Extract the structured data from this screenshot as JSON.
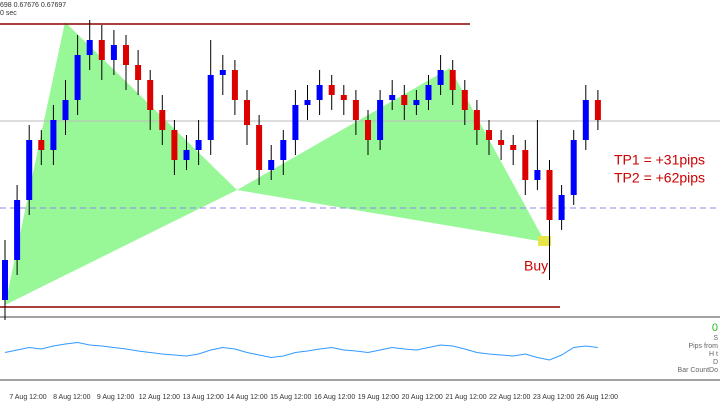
{
  "chart_data": {
    "type": "candlestick",
    "header": [
      "698 0.67676 0.67697",
      "0 sec"
    ],
    "ylim": [
      0.67,
      0.676
    ],
    "bull_color": "#0000ff",
    "bear_color": "#dd0000",
    "open": [
      0.6704,
      0.6712,
      0.6724,
      0.6736,
      0.6734,
      0.674,
      0.6744,
      0.6753,
      0.6756,
      0.6752,
      0.6755,
      0.6751,
      0.6748,
      0.6742,
      0.6738,
      0.6732,
      0.6734,
      0.6736,
      0.6749,
      0.675,
      0.6744,
      0.6739,
      0.673,
      0.6732,
      0.6736,
      0.6743,
      0.6744,
      0.6747,
      0.6745,
      0.6744,
      0.674,
      0.6736,
      0.6744,
      0.6745,
      0.6743,
      0.6744,
      0.6747,
      0.675,
      0.6746,
      0.6742,
      0.6738,
      0.6736,
      0.6735,
      0.6734,
      0.6728,
      0.673,
      0.672,
      0.6725,
      0.6736,
      0.6744
    ],
    "high": [
      0.6716,
      0.6727,
      0.6739,
      0.6738,
      0.6743,
      0.6748,
      0.6757,
      0.676,
      0.6759,
      0.6758,
      0.6757,
      0.6754,
      0.675,
      0.6745,
      0.674,
      0.6737,
      0.674,
      0.6756,
      0.6753,
      0.6752,
      0.6746,
      0.6741,
      0.6735,
      0.6738,
      0.6746,
      0.6747,
      0.675,
      0.6749,
      0.6747,
      0.6746,
      0.6742,
      0.6746,
      0.6748,
      0.6747,
      0.6746,
      0.6749,
      0.6753,
      0.6752,
      0.6748,
      0.6744,
      0.674,
      0.6738,
      0.6737,
      0.6736,
      0.674,
      0.6732,
      0.6727,
      0.6738,
      0.6747,
      0.6746
    ],
    "low": [
      0.67,
      0.6709,
      0.6721,
      0.6731,
      0.6731,
      0.6737,
      0.6741,
      0.675,
      0.6748,
      0.6749,
      0.6746,
      0.6745,
      0.6738,
      0.6735,
      0.6729,
      0.673,
      0.6731,
      0.6733,
      0.6745,
      0.6741,
      0.6735,
      0.6727,
      0.6728,
      0.6729,
      0.6733,
      0.674,
      0.6741,
      0.6742,
      0.6741,
      0.6737,
      0.6733,
      0.6734,
      0.6742,
      0.674,
      0.6741,
      0.6742,
      0.6745,
      0.6743,
      0.6739,
      0.6735,
      0.6733,
      0.6732,
      0.6731,
      0.6725,
      0.6726,
      0.6708,
      0.6718,
      0.6723,
      0.6734,
      0.6738
    ],
    "close": [
      0.6712,
      0.6724,
      0.6736,
      0.6734,
      0.674,
      0.6744,
      0.6753,
      0.6756,
      0.6752,
      0.6755,
      0.6751,
      0.6748,
      0.6742,
      0.6738,
      0.6732,
      0.6734,
      0.6736,
      0.6749,
      0.675,
      0.6744,
      0.6739,
      0.673,
      0.6732,
      0.6736,
      0.6743,
      0.6744,
      0.6747,
      0.6745,
      0.6744,
      0.674,
      0.6736,
      0.6744,
      0.6745,
      0.6743,
      0.6744,
      0.6747,
      0.675,
      0.6746,
      0.6742,
      0.6738,
      0.6736,
      0.6735,
      0.6734,
      0.6728,
      0.673,
      0.672,
      0.6725,
      0.6736,
      0.6744,
      0.674
    ],
    "annotations": [
      "TP1 = +31pips",
      "TP2 = +62pips",
      "Buy"
    ],
    "indicator": {
      "ylim": [
        0,
        100
      ],
      "color": "#3399ff",
      "values": [
        45,
        50,
        55,
        52,
        58,
        62,
        65,
        60,
        58,
        55,
        52,
        48,
        45,
        42,
        40,
        38,
        42,
        50,
        55,
        52,
        45,
        40,
        35,
        38,
        45,
        48,
        52,
        55,
        50,
        48,
        45,
        50,
        55,
        52,
        50,
        55,
        60,
        58,
        52,
        45,
        42,
        40,
        38,
        42,
        35,
        30,
        40,
        55,
        58,
        55
      ],
      "labels": [
        "0",
        "S",
        "Pips from",
        "H t",
        "D",
        "Bar CountDo"
      ]
    },
    "x_labels": [
      "7 Aug 12:00",
      "8 Aug 12:00",
      "9 Aug 12:00",
      "12 Aug 12:00",
      "13 Aug 12:00",
      "14 Aug 12:00",
      "15 Aug 12:00",
      "16 Aug 12:00",
      "19 Aug 12:00",
      "20 Aug 12:00",
      "21 Aug 12:00",
      "22 Aug 12:00",
      "23 Aug 12:00",
      "26 Aug 12:00"
    ]
  }
}
